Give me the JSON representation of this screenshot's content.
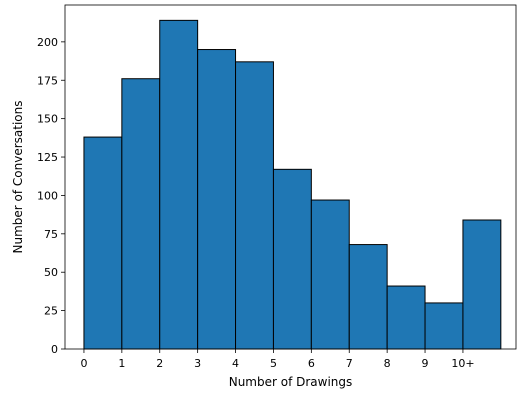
{
  "chart_data": {
    "type": "bar",
    "title": "",
    "xlabel": "Number of Drawings",
    "ylabel": "Number of Conversations",
    "x_ticks": [
      "0",
      "1",
      "2",
      "3",
      "4",
      "5",
      "6",
      "7",
      "8",
      "9",
      "10+"
    ],
    "y_ticks": [
      0,
      25,
      50,
      75,
      100,
      125,
      150,
      175,
      200
    ],
    "bins": [
      {
        "start": 0,
        "end": 1,
        "value": 138
      },
      {
        "start": 1,
        "end": 2,
        "value": 176
      },
      {
        "start": 2,
        "end": 3,
        "value": 214
      },
      {
        "start": 3,
        "end": 4,
        "value": 195
      },
      {
        "start": 4,
        "end": 5,
        "value": 187
      },
      {
        "start": 5,
        "end": 6,
        "value": 117
      },
      {
        "start": 6,
        "end": 7,
        "value": 97
      },
      {
        "start": 7,
        "end": 8,
        "value": 68
      },
      {
        "start": 8,
        "end": 9,
        "value": 41
      },
      {
        "start": 9,
        "end": 10,
        "value": 30
      },
      {
        "start": 10,
        "end": 11,
        "value": 84
      }
    ],
    "xlim": [
      -0.5,
      11.4
    ],
    "ylim": [
      0,
      224
    ],
    "grid": false,
    "colors": {
      "bar_fill": "#1f77b4",
      "bar_edge": "#000000"
    }
  }
}
